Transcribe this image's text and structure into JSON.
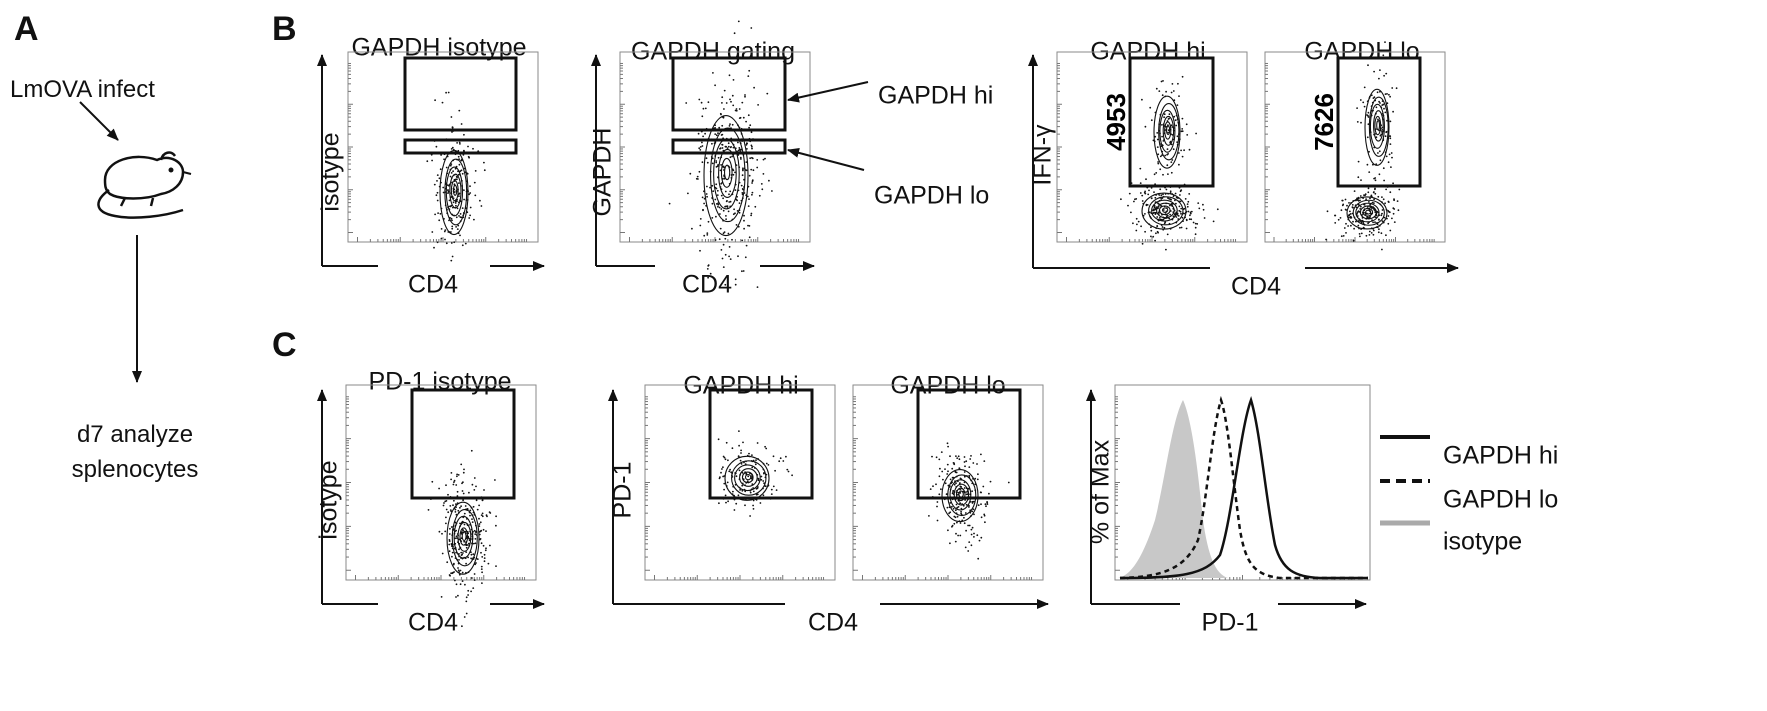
{
  "panel_a": {
    "letter": "A",
    "infect_label": "LmOVA infect",
    "analyze_line1": "d7 analyze",
    "analyze_line2": "splenocytes"
  },
  "panel_b": {
    "letter": "B",
    "plot1_title": "GAPDH isotype",
    "plot1_ylabel": "isotype",
    "plot1_xlabel": "CD4",
    "plot2_title": "GAPDH gating",
    "plot2_ylabel": "GAPDH",
    "plot2_xlabel": "CD4",
    "gate_hi_label": "GAPDH hi",
    "gate_lo_label": "GAPDH lo",
    "plot3_title": "GAPDH hi",
    "plot3_value": "4953",
    "plot4_title": "GAPDH lo",
    "plot4_value": "7626",
    "pair_ylabel": "IFN-γ",
    "pair_xlabel": "CD4"
  },
  "panel_c": {
    "letter": "C",
    "plot1_title": "PD-1 isotype",
    "plot1_ylabel": "isotype",
    "plot1_xlabel": "CD4",
    "plot2_title": "GAPDH hi",
    "plot3_title": "GAPDH lo",
    "pair_ylabel": "PD-1",
    "pair_xlabel": "CD4",
    "hist_ylabel": "% of Max",
    "hist_xlabel": "PD-1",
    "legend": [
      {
        "label": "GAPDH hi",
        "style": "solid",
        "color": "#111111"
      },
      {
        "label": "GAPDH lo",
        "style": "dashed",
        "color": "#111111"
      },
      {
        "label": "isotype",
        "style": "solid",
        "color": "#aaaaaa"
      }
    ]
  },
  "colors": {
    "ink": "#111111",
    "frame": "#8a8a8a",
    "isotype_fill": "#c8c8c8"
  }
}
